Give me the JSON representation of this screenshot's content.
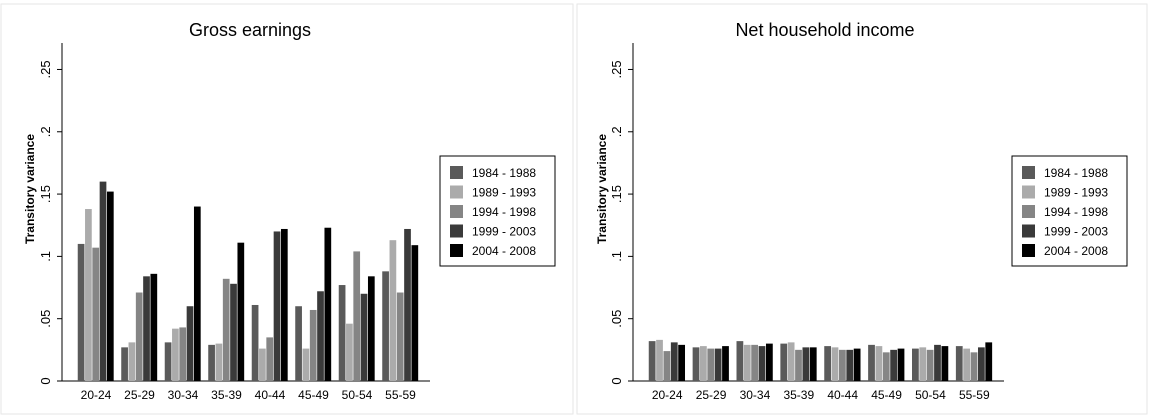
{
  "chart_data": [
    {
      "type": "bar",
      "title": "Gross earnings",
      "xlabel": "",
      "ylabel": "Transitory variance",
      "ylim": [
        0,
        0.26
      ],
      "yticks": [
        0,
        0.05,
        0.1,
        0.15,
        0.2,
        0.25
      ],
      "ytick_labels": [
        "0",
        ".05",
        ".1",
        ".15",
        ".2",
        ".25"
      ],
      "categories": [
        "20-24",
        "25-29",
        "30-34",
        "35-39",
        "40-44",
        "45-49",
        "50-54",
        "55-59"
      ],
      "legend_position": "right",
      "series": [
        {
          "name": "1984 - 1988",
          "color": "#5a5a5a",
          "values": [
            0.11,
            0.027,
            0.031,
            0.029,
            0.061,
            0.06,
            0.077,
            0.088
          ]
        },
        {
          "name": "1989 - 1993",
          "color": "#ababab",
          "values": [
            0.138,
            0.031,
            0.042,
            0.03,
            0.026,
            0.026,
            0.046,
            0.113
          ]
        },
        {
          "name": "1994 - 1998",
          "color": "#858585",
          "values": [
            0.107,
            0.071,
            0.043,
            0.082,
            0.035,
            0.057,
            0.104,
            0.071
          ]
        },
        {
          "name": "1999 - 2003",
          "color": "#3a3a3a",
          "values": [
            0.16,
            0.084,
            0.06,
            0.078,
            0.12,
            0.072,
            0.07,
            0.122
          ]
        },
        {
          "name": "2004 - 2008",
          "color": "#000000",
          "values": [
            0.152,
            0.086,
            0.14,
            0.111,
            0.122,
            0.123,
            0.084,
            0.109
          ]
        }
      ]
    },
    {
      "type": "bar",
      "title": "Net household income",
      "xlabel": "",
      "ylabel": "Transitory variance",
      "ylim": [
        0,
        0.26
      ],
      "yticks": [
        0,
        0.05,
        0.1,
        0.15,
        0.2,
        0.25
      ],
      "ytick_labels": [
        "0",
        ".05",
        ".1",
        ".15",
        ".2",
        ".25"
      ],
      "categories": [
        "20-24",
        "25-29",
        "30-34",
        "35-39",
        "40-44",
        "45-49",
        "50-54",
        "55-59"
      ],
      "legend_position": "right",
      "series": [
        {
          "name": "1984 - 1988",
          "color": "#5a5a5a",
          "values": [
            0.032,
            0.027,
            0.032,
            0.03,
            0.028,
            0.029,
            0.026,
            0.028
          ]
        },
        {
          "name": "1989 - 1993",
          "color": "#ababab",
          "values": [
            0.033,
            0.028,
            0.029,
            0.031,
            0.027,
            0.028,
            0.027,
            0.026
          ]
        },
        {
          "name": "1994 - 1998",
          "color": "#858585",
          "values": [
            0.024,
            0.026,
            0.029,
            0.025,
            0.025,
            0.023,
            0.025,
            0.023
          ]
        },
        {
          "name": "1999 - 2003",
          "color": "#3a3a3a",
          "values": [
            0.031,
            0.026,
            0.028,
            0.027,
            0.025,
            0.025,
            0.029,
            0.027
          ]
        },
        {
          "name": "2004 - 2008",
          "color": "#000000",
          "values": [
            0.029,
            0.028,
            0.03,
            0.027,
            0.026,
            0.026,
            0.028,
            0.031
          ]
        }
      ]
    }
  ]
}
